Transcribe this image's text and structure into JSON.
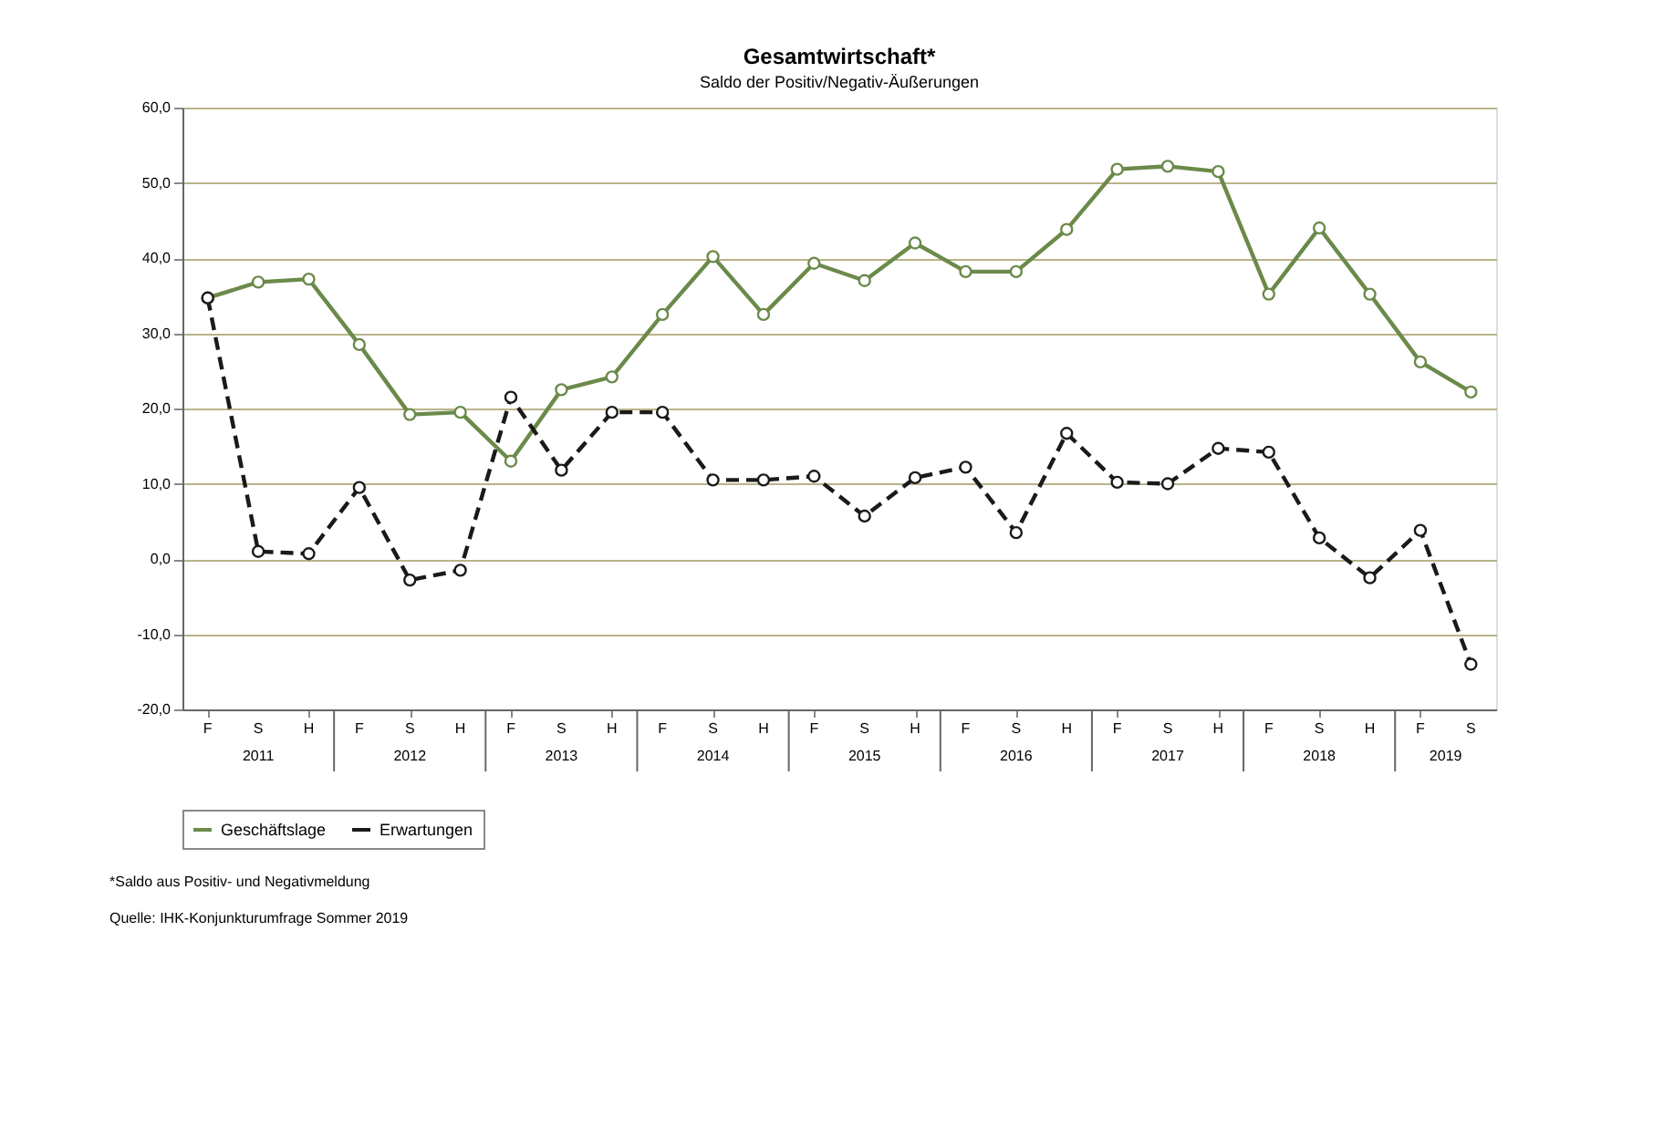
{
  "chart_data": {
    "type": "line",
    "title": "Gesamtwirtschaft*",
    "subtitle": "Saldo der Positiv/Negativ-Äußerungen",
    "categories": [
      "F",
      "S",
      "H",
      "F",
      "S",
      "H",
      "F",
      "S",
      "H",
      "F",
      "S",
      "H",
      "F",
      "S",
      "H",
      "F",
      "S",
      "H",
      "F",
      "S",
      "H",
      "F",
      "S",
      "H",
      "F",
      "S"
    ],
    "series": [
      {
        "name": "Geschäftslage",
        "color": "#6b8a4a",
        "line_style": "solid",
        "values": [
          34.7,
          36.8,
          37.2,
          28.5,
          19.2,
          19.5,
          13,
          22.5,
          24.2,
          32.5,
          40.2,
          32.5,
          39.3,
          37,
          42,
          38.2,
          38.2,
          43.8,
          51.8,
          52.2,
          51.5,
          35.2,
          44,
          35.2,
          26.2,
          22.2
        ]
      },
      {
        "name": "Erwartungen",
        "color": "#1a1a1a",
        "line_style": "dashed",
        "values": [
          34.7,
          1,
          0.7,
          9.5,
          -2.8,
          -1.5,
          21.5,
          11.8,
          19.5,
          19.5,
          10.5,
          10.5,
          11,
          5.7,
          10.8,
          12.2,
          3.5,
          16.7,
          10.2,
          10,
          14.7,
          14.2,
          2.8,
          -2.5,
          3.8,
          -14
        ]
      }
    ],
    "ylim": [
      -20,
      60
    ],
    "yticks": [
      {
        "value": -20,
        "label": "-20,0"
      },
      {
        "value": -10,
        "label": "-10,0"
      },
      {
        "value": 0,
        "label": "0,0"
      },
      {
        "value": 10,
        "label": "10,0"
      },
      {
        "value": 20,
        "label": "20,0"
      },
      {
        "value": 30,
        "label": "30,0"
      },
      {
        "value": 40,
        "label": "40,0"
      },
      {
        "value": 50,
        "label": "50,0"
      },
      {
        "value": 60,
        "label": "60,0"
      }
    ],
    "grid": "y",
    "legend": "bottom",
    "marker": "circle",
    "annotations": [
      "2011",
      "2012",
      "2013",
      "2014",
      "2015",
      "2016",
      "2017",
      "2018",
      "2019",
      "*Saldo aus Positiv- und Negativmeldung",
      "Quelle: IHK-Konjunkturumfrage Sommer 2019"
    ]
  }
}
